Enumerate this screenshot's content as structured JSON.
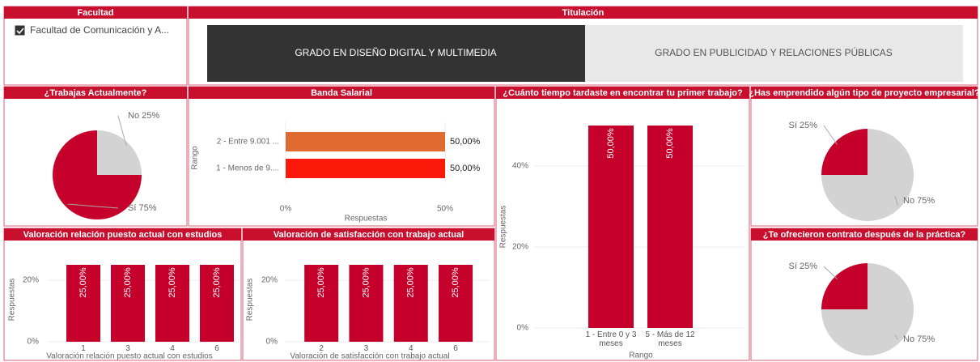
{
  "filters": {
    "facultad": {
      "title": "Facultad",
      "options": [
        "Facultad de Comunicación y A..."
      ],
      "checked": [
        true
      ]
    },
    "titulacion": {
      "title": "Titulación",
      "options": [
        "GRADO EN DISEÑO DIGITAL Y MULTIMEDIA",
        "GRADO EN PUBLICIDAD Y RELACIONES PÚBLICAS"
      ],
      "selected": 0
    }
  },
  "chart_data": [
    {
      "type": "pie",
      "title": "¿Trabajas Actualmente?",
      "categories": [
        "No",
        "Sí"
      ],
      "values": [
        25,
        75
      ],
      "value_labels": [
        "25%",
        "75%"
      ],
      "colors": [
        "#d3d3d3",
        "#c4002b"
      ]
    },
    {
      "type": "hbar",
      "title": "Banda Salarial",
      "categories": [
        "2 - Entre 9.001 ...",
        "1 - Menos de 9...."
      ],
      "values": [
        50,
        50
      ],
      "value_labels": [
        "50,00%",
        "50,00%"
      ],
      "colors": [
        "#e06a30",
        "#fb1a0a"
      ],
      "xlim": [
        0,
        50
      ],
      "xticks": [
        {
          "value": 0,
          "label": "0%"
        },
        {
          "value": 50,
          "label": "50%"
        }
      ],
      "x_label": "Respuestas",
      "y_label": "Rango",
      "grid": true
    },
    {
      "type": "bar",
      "title": "¿Cuánto tiempo tardaste en encontrar tu primer trabajo?",
      "categories": [
        "1 - Entre 0 y 3 meses",
        "5 - Más de 12 meses"
      ],
      "values": [
        50,
        50
      ],
      "value_labels": [
        "50,00%",
        "50,00%"
      ],
      "color": "#c4002b",
      "ylim": [
        0,
        50
      ],
      "yticks": [
        {
          "value": 0,
          "label": "0%"
        },
        {
          "value": 20,
          "label": "20%"
        },
        {
          "value": 40,
          "label": "40%"
        }
      ],
      "x_label": "Rango",
      "y_label": "Respuestas",
      "grid": true
    },
    {
      "type": "pie",
      "title": "¿Has emprendido algún tipo de proyecto empresarial?",
      "categories": [
        "No",
        "Sí"
      ],
      "values": [
        75,
        25
      ],
      "value_labels": [
        "75%",
        "25%"
      ],
      "colors": [
        "#d3d3d3",
        "#c4002b"
      ]
    },
    {
      "type": "bar",
      "title": "Valoración relación puesto actual con estudios",
      "categories": [
        "1",
        "3",
        "4",
        "6"
      ],
      "values": [
        25,
        25,
        25,
        25
      ],
      "value_labels": [
        "25,00%",
        "25,00%",
        "25,00%",
        "25,00%"
      ],
      "color": "#c4002b",
      "ylim": [
        0,
        25
      ],
      "yticks": [
        {
          "value": 0,
          "label": "0%"
        },
        {
          "value": 20,
          "label": "20%"
        }
      ],
      "x_label": "Valoración relación puesto actual con estudios",
      "y_label": "Respuestas",
      "grid": true
    },
    {
      "type": "bar",
      "title": "Valoración de satisfacción con trabajo actual",
      "categories": [
        "2",
        "3",
        "4",
        "6"
      ],
      "values": [
        25,
        25,
        25,
        25
      ],
      "value_labels": [
        "25,00%",
        "25,00%",
        "25,00%",
        "25,00%"
      ],
      "color": "#c4002b",
      "ylim": [
        0,
        25
      ],
      "yticks": [
        {
          "value": 0,
          "label": "0%"
        },
        {
          "value": 20,
          "label": "20%"
        }
      ],
      "x_label": "Valoración de satisfacción con trabajo actual",
      "y_label": "Respuestas",
      "grid": true
    },
    {
      "type": "pie",
      "title": "¿Te ofrecieron contrato después de la práctica?",
      "categories": [
        "No",
        "Sí"
      ],
      "values": [
        75,
        25
      ],
      "value_labels": [
        "75%",
        "25%"
      ],
      "colors": [
        "#d3d3d3",
        "#c4002b"
      ]
    }
  ]
}
